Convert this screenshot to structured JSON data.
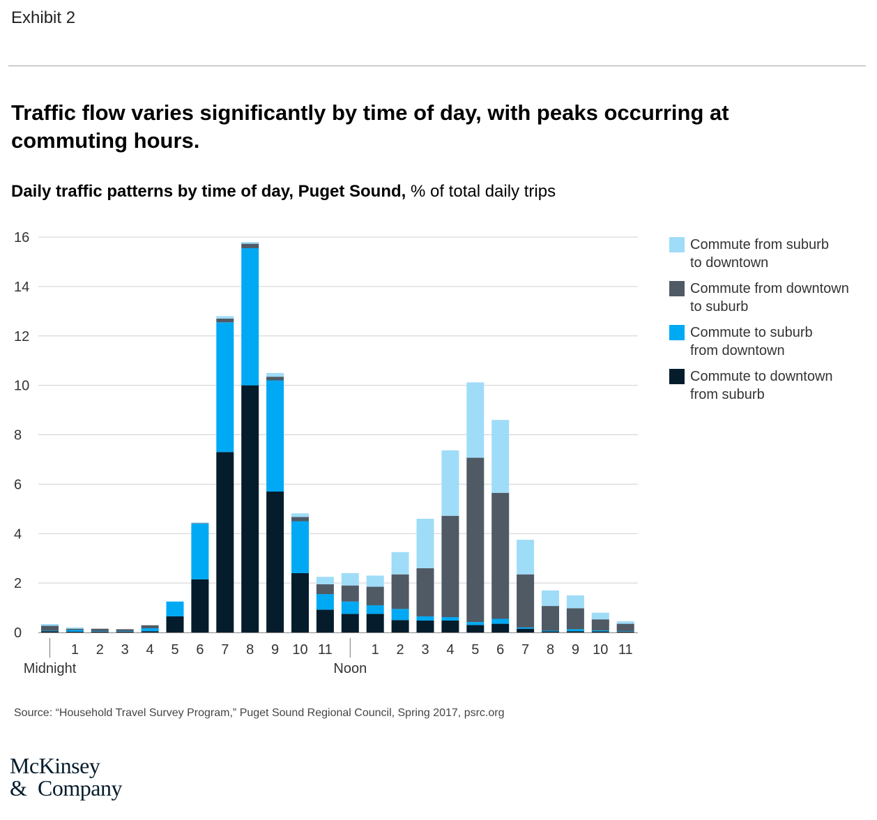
{
  "header": {
    "exhibit_label": "Exhibit 2",
    "headline": "Traffic flow varies significantly by time of day, with peaks occurring at commuting hours.",
    "subtitle_bold": "Daily traffic patterns by time of day, Puget Sound,",
    "subtitle_unit": " % of total daily trips"
  },
  "footer": {
    "source": "Source: “Household Travel Survey Program,” Puget Sound Regional Council, Spring 2017, psrc.org",
    "logo_line1": "McKinsey",
    "logo_amp": "&",
    "logo_line2": "Company"
  },
  "colors": {
    "to_downtown": "#051c2c",
    "to_suburb": "#00a9f4",
    "from_downtown": "#4f5a65",
    "from_suburb": "#9fdcf8",
    "grid": "#d0d0d0",
    "axis": "#333333",
    "text": "#333333"
  },
  "legend": [
    {
      "label1": "Commute from suburb",
      "label2": "to downtown",
      "color": "#9fdcf8"
    },
    {
      "label1": "Commute from downtown",
      "label2": "to suburb",
      "color": "#4f5a65"
    },
    {
      "label1": "Commute to suburb",
      "label2": "from downtown",
      "color": "#00a9f4"
    },
    {
      "label1": "Commute to downtown",
      "label2": "from suburb",
      "color": "#051c2c"
    }
  ],
  "chart_data": {
    "type": "bar",
    "stacked": true,
    "title": "Daily traffic patterns by time of day, Puget Sound, % of total daily trips",
    "categories": [
      "",
      "1",
      "2",
      "3",
      "4",
      "5",
      "6",
      "7",
      "8",
      "9",
      "10",
      "11",
      "",
      "1",
      "2",
      "3",
      "4",
      "5",
      "6",
      "7",
      "8",
      "9",
      "10",
      "11"
    ],
    "period_labels": [
      {
        "index": 0,
        "label": "Midnight"
      },
      {
        "index": 12,
        "label": "Noon"
      }
    ],
    "ylim": [
      0,
      16
    ],
    "yticks": [
      0,
      2,
      4,
      6,
      8,
      10,
      12,
      14,
      16
    ],
    "grid": true,
    "legend_position": "right",
    "series": [
      {
        "name": "Commute to downtown from suburb",
        "key": "to_downtown",
        "values": [
          0.05,
          0.03,
          0.03,
          0.03,
          0.05,
          0.65,
          2.15,
          7.3,
          10.0,
          5.7,
          2.4,
          0.92,
          0.75,
          0.75,
          0.5,
          0.48,
          0.48,
          0.3,
          0.35,
          0.15,
          0.04,
          0.05,
          0.04,
          0.03
        ]
      },
      {
        "name": "Commute to suburb from downtown",
        "key": "to_suburb",
        "values": [
          0.02,
          0.07,
          0.02,
          0.02,
          0.12,
          0.6,
          2.25,
          5.25,
          5.55,
          4.5,
          2.1,
          0.63,
          0.5,
          0.35,
          0.45,
          0.17,
          0.14,
          0.12,
          0.2,
          0.05,
          0.03,
          0.08,
          0.04,
          0.02
        ]
      },
      {
        "name": "Commute from downtown to suburb",
        "key": "from_downtown",
        "values": [
          0.2,
          0.05,
          0.1,
          0.08,
          0.12,
          0.0,
          0.02,
          0.15,
          0.18,
          0.15,
          0.17,
          0.4,
          0.65,
          0.75,
          1.4,
          1.95,
          4.1,
          6.65,
          5.1,
          2.15,
          1.0,
          0.85,
          0.45,
          0.3
        ]
      },
      {
        "name": "Commute from suburb to downtown",
        "key": "from_suburb",
        "values": [
          0.07,
          0.05,
          0.0,
          0.0,
          0.0,
          0.0,
          0.03,
          0.1,
          0.07,
          0.15,
          0.15,
          0.3,
          0.5,
          0.45,
          0.9,
          2.0,
          2.65,
          3.05,
          2.95,
          1.4,
          0.63,
          0.52,
          0.27,
          0.1
        ]
      }
    ]
  }
}
